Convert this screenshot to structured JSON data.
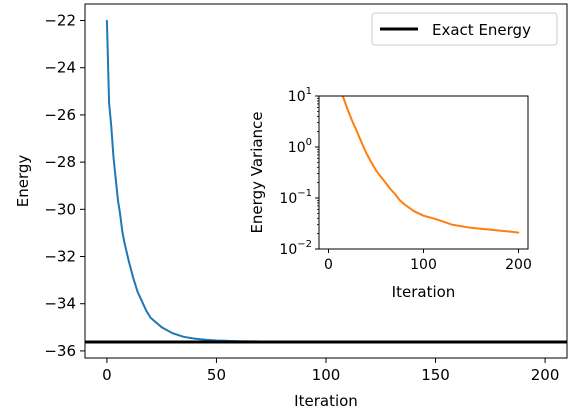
{
  "chart_data": [
    {
      "type": "line",
      "xlabel": "Iteration",
      "ylabel": "Energy",
      "xlim": [
        -10,
        210
      ],
      "ylim": [
        -36.3,
        -21.3
      ],
      "xticks": [
        0,
        50,
        100,
        150,
        200
      ],
      "yticks": [
        -36,
        -34,
        -32,
        -30,
        -28,
        -26,
        -24,
        -22
      ],
      "xtick_labels": [
        "0",
        "50",
        "100",
        "150",
        "200"
      ],
      "ytick_labels": [
        "−36",
        "−34",
        "−32",
        "−30",
        "−28",
        "−26",
        "−24",
        "−22"
      ],
      "legend": {
        "placement": "top-right",
        "entries": [
          "Exact Energy"
        ]
      },
      "reference_line": {
        "name": "Exact Energy",
        "y": -35.62,
        "color": "#000000"
      },
      "series": [
        {
          "color": "#1f77b4",
          "x": [
            0,
            1,
            2,
            3,
            4,
            5,
            6,
            7,
            8,
            9,
            10,
            12,
            14,
            16,
            18,
            20,
            25,
            30,
            35,
            40,
            45,
            50,
            60,
            70,
            80,
            100,
            120,
            140,
            160,
            180,
            200
          ],
          "y": [
            -22.0,
            -25.5,
            -26.5,
            -27.8,
            -28.7,
            -29.6,
            -30.2,
            -30.9,
            -31.4,
            -31.8,
            -32.2,
            -32.9,
            -33.5,
            -33.9,
            -34.3,
            -34.6,
            -35.0,
            -35.25,
            -35.4,
            -35.48,
            -35.53,
            -35.56,
            -35.59,
            -35.6,
            -35.61,
            -35.61,
            -35.62,
            -35.62,
            -35.62,
            -35.62,
            -35.62
          ]
        }
      ]
    },
    {
      "type": "line",
      "xlabel": "Iteration",
      "ylabel": "Energy Variance",
      "yscale": "log",
      "xlim": [
        -10,
        210
      ],
      "ylim": [
        0.01,
        10
      ],
      "xticks": [
        0,
        100,
        200
      ],
      "xtick_labels": [
        "0",
        "100",
        "200"
      ],
      "yticks": [
        0.01,
        0.1,
        1,
        10
      ],
      "ytick_labels": [
        {
          "base": "10",
          "exp": "−2"
        },
        {
          "base": "10",
          "exp": "−1"
        },
        {
          "base": "10",
          "exp": "0"
        },
        {
          "base": "10",
          "exp": "1"
        }
      ],
      "series": [
        {
          "color": "#ff7f0e",
          "x": [
            15,
            20,
            25,
            30,
            35,
            40,
            45,
            50,
            55,
            60,
            65,
            70,
            75,
            80,
            90,
            100,
            110,
            120,
            130,
            140,
            150,
            160,
            170,
            180,
            190,
            200
          ],
          "y": [
            10,
            5.5,
            3.2,
            2.0,
            1.2,
            0.75,
            0.5,
            0.35,
            0.26,
            0.2,
            0.15,
            0.12,
            0.09,
            0.075,
            0.055,
            0.045,
            0.04,
            0.035,
            0.03,
            0.028,
            0.026,
            0.025,
            0.024,
            0.023,
            0.022,
            0.021
          ]
        }
      ]
    }
  ]
}
